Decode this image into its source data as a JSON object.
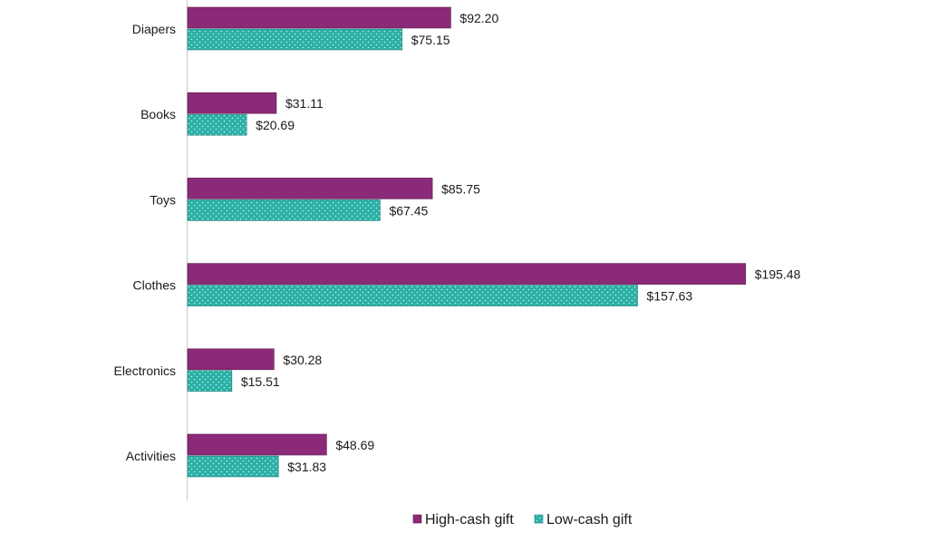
{
  "chart_data": {
    "type": "bar",
    "orientation": "horizontal",
    "categories": [
      "Diapers",
      "Books",
      "Toys",
      "Clothes",
      "Electronics",
      "Activities"
    ],
    "series": [
      {
        "name": "High-cash gift",
        "color": "#8b2a78",
        "values": [
          92.2,
          31.11,
          85.75,
          195.48,
          30.28,
          48.69
        ],
        "labels": [
          "$92.20",
          "$31.11",
          "$85.75",
          "$195.48",
          "$30.28",
          "$48.69"
        ]
      },
      {
        "name": "Low-cash gift",
        "color": "#2bb0a6",
        "pattern": "dotted",
        "values": [
          75.15,
          20.69,
          67.45,
          157.63,
          15.51,
          31.83
        ],
        "labels": [
          "$75.15",
          "$20.69",
          "$67.45",
          "$157.63",
          "$15.51",
          "$31.83"
        ]
      }
    ],
    "xlim": [
      0,
      250
    ],
    "grid": false,
    "legend": "bottom"
  }
}
